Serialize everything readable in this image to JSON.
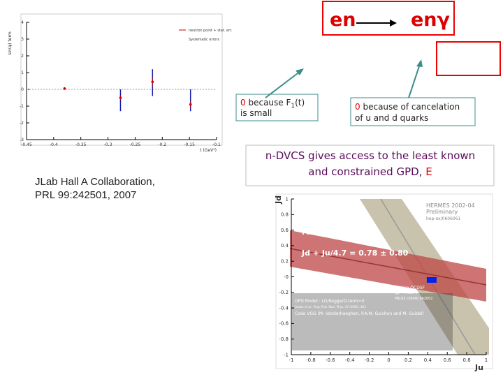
{
  "slide": {
    "reaction_left": "en",
    "reaction_right": "enγ",
    "note_left": {
      "zero": "0",
      "line1": "because F",
      "sub": "1",
      "line1_end": "(t)",
      "line2": "is small"
    },
    "note_right": {
      "zero": "0",
      "line1": "because of cancelation",
      "line2": "of u and d quarks"
    },
    "statement": {
      "line1": "n-DVCS gives access to the least known",
      "line2": "and constrained GPD,",
      "gpd": "E"
    },
    "reference": {
      "line1": "JLab Hall A Collaboration,",
      "line2": "PRL 99:242501, 2007"
    }
  },
  "chart_data": [
    {
      "type": "scatter",
      "x_label": "t (GeV²)",
      "y_label": "sin(φ) term",
      "xlim": [
        -0.45,
        -0.1
      ],
      "xticks": [
        -0.45,
        -0.4,
        -0.35,
        -0.3,
        -0.25,
        -0.2,
        -0.15,
        -0.1
      ],
      "ylim": [
        -3,
        4
      ],
      "yticks": [
        -3,
        -2,
        -1,
        0,
        1,
        2,
        3,
        4
      ],
      "series": [
        {
          "name": "neutron point + stat. err.",
          "color": "#cc0000",
          "x": [
            -0.38,
            -0.277,
            -0.218,
            -0.148
          ],
          "values": [
            0.05,
            -0.5,
            0.45,
            -0.9
          ],
          "errors": [
            0.08,
            0.12,
            0.25,
            0.15
          ]
        },
        {
          "name": "Systematic errors",
          "color": "#1a1aaa",
          "x": [
            -0.38,
            -0.277,
            -0.218,
            -0.148
          ],
          "low": [
            0,
            -1.3,
            -0.4,
            -1.3
          ],
          "high": [
            0.1,
            0,
            1.2,
            0
          ]
        }
      ]
    },
    {
      "type": "scatter",
      "x_label": "Ju",
      "y_label": "Jd",
      "xlim": [
        -1,
        1
      ],
      "xticks": [
        -1,
        -0.8,
        -0.6,
        -0.4,
        -0.2,
        0,
        0.2,
        0.4,
        0.6,
        0.8,
        1
      ],
      "ylim": [
        -1,
        1
      ],
      "yticks": [
        -1,
        -0.8,
        -0.6,
        -0.4,
        -0.2,
        {
          "value": 0,
          "label": "-0"
        },
        0.2,
        0.4,
        0.6,
        0.8,
        1
      ],
      "series": [
        {
          "name": "Lattice QCDSF",
          "color": "#0022ee",
          "x": [
            0.44
          ],
          "values": [
            -0.04
          ]
        }
      ],
      "annotations": [
        {
          "text": "HERMES 2002-04",
          "color": "#888888"
        },
        {
          "text": "Preliminary",
          "color": "#888888"
        },
        {
          "text": "hep-ex/0606061",
          "color": "#888888"
        },
        {
          "text": "Hall A E03-106",
          "color": "#ffffff"
        },
        {
          "text": "Preliminary",
          "color": "#ffffff"
        },
        {
          "text": "Jd + Ju/4.7 = 0.78 ± 0.80",
          "color": "#ffffff"
        },
        {
          "text": "J(μ²=4 GeV²)",
          "color": "#ffffff"
        },
        {
          "text": "PRL92 (2004) 042002",
          "color": "#ffffff"
        },
        {
          "text": "GPD Model : LO/Regge/D-term=0",
          "color": "#ffffff"
        },
        {
          "text": "Goeke et al., Prog. Part. Nucl. Phys. 47 (2001), 401",
          "color": "#ffffff"
        },
        {
          "text": "Code VGG (M. Vanderhaeghen, P.A.M. Guichon and M. Guidal)",
          "color": "#ffffff"
        }
      ]
    }
  ]
}
